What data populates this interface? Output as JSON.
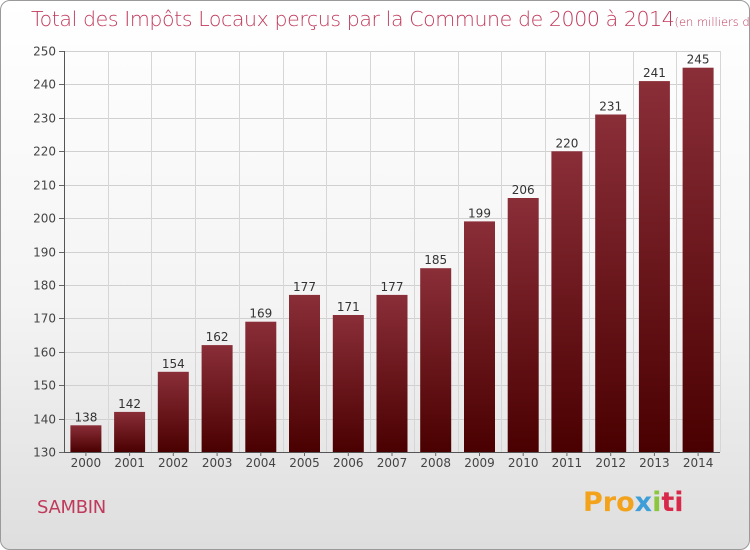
{
  "chart_data": {
    "type": "bar",
    "title": "Total des Impôts Locaux perçus par la Commune de 2000 à 2014",
    "unit_note": "(en milliers d'€)",
    "categories": [
      "2000",
      "2001",
      "2002",
      "2003",
      "2004",
      "2005",
      "2006",
      "2007",
      "2008",
      "2009",
      "2010",
      "2011",
      "2012",
      "2013",
      "2014"
    ],
    "values": [
      138,
      142,
      154,
      162,
      169,
      177,
      171,
      177,
      185,
      199,
      206,
      220,
      231,
      241,
      245
    ],
    "ylim": [
      130,
      250
    ],
    "yticks": [
      130,
      140,
      150,
      160,
      170,
      180,
      190,
      200,
      210,
      220,
      230,
      240,
      250
    ],
    "grid": true,
    "xlabel": "",
    "ylabel": "",
    "bar_color_top": "#8a2e38",
    "bar_color_bottom": "#4a0000"
  },
  "footer": {
    "commune": "SAMBIN",
    "logo": {
      "p1": "Pro",
      "p2": "x",
      "p3": "i",
      "p4": "ti"
    }
  }
}
